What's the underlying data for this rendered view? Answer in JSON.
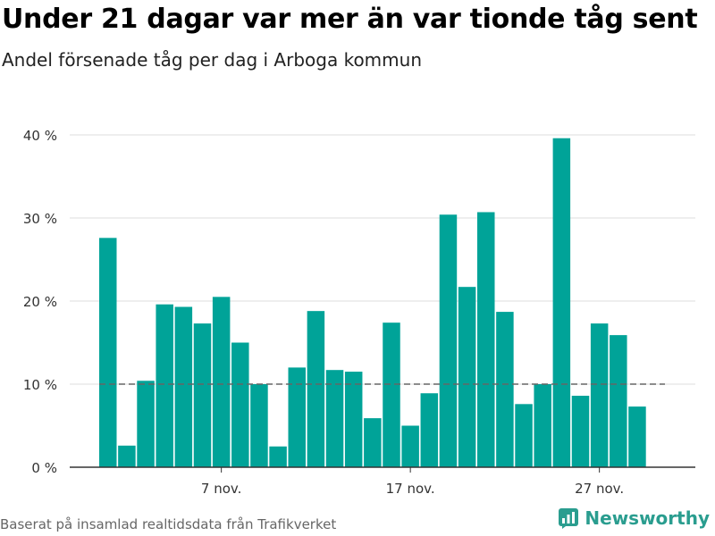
{
  "header": {
    "title": "Under 21 dagar var mer än var tionde tåg sent",
    "subtitle": "Andel försenade tåg per dag i Arboga kommun"
  },
  "footer": {
    "source": "Baserat på insamlad realtidsdata från Trafikverket",
    "brand": "Newsworthy",
    "brand_icon": "bar-chart-logo-icon"
  },
  "colors": {
    "bar": "#00a398",
    "reference_line": "#666666",
    "grid": "#dddddd",
    "axis": "#333333",
    "brand": "#2a9d8f"
  },
  "chart_data": {
    "type": "bar",
    "title": "Under 21 dagar var mer än var tionde tåg sent",
    "subtitle": "Andel försenade tåg per dag i Arboga kommun",
    "xlabel": "",
    "ylabel": "",
    "ylim": [
      0,
      40
    ],
    "grid": true,
    "y_ticks": [
      0,
      10,
      20,
      30,
      40
    ],
    "y_tick_labels": [
      "0 %",
      "10 %",
      "20 %",
      "30 %",
      "40 %"
    ],
    "x_ticks": [
      "2023-11-07",
      "2023-11-17",
      "2023-11-27"
    ],
    "x_tick_labels": [
      "7 nov.",
      "17 nov.",
      "27 nov."
    ],
    "reference_line": {
      "value": 10,
      "style": "dashed"
    },
    "categories": [
      "2023-11-01",
      "2023-11-02",
      "2023-11-03",
      "2023-11-04",
      "2023-11-05",
      "2023-11-06",
      "2023-11-07",
      "2023-11-08",
      "2023-11-09",
      "2023-11-10",
      "2023-11-11",
      "2023-11-12",
      "2023-11-13",
      "2023-11-14",
      "2023-11-15",
      "2023-11-16",
      "2023-11-17",
      "2023-11-18",
      "2023-11-19",
      "2023-11-20",
      "2023-11-21",
      "2023-11-22",
      "2023-11-23",
      "2023-11-24",
      "2023-11-25",
      "2023-11-26",
      "2023-11-27",
      "2023-11-28",
      "2023-11-29",
      "2023-11-30"
    ],
    "values": [
      27.6,
      2.6,
      10.4,
      19.6,
      19.3,
      17.3,
      20.5,
      15.0,
      10.0,
      2.5,
      12.0,
      18.8,
      11.7,
      11.5,
      5.9,
      17.4,
      5.0,
      8.9,
      30.4,
      21.7,
      30.7,
      18.7,
      7.6,
      10.0,
      39.6,
      8.6,
      17.3,
      15.9,
      7.3,
      null
    ]
  }
}
